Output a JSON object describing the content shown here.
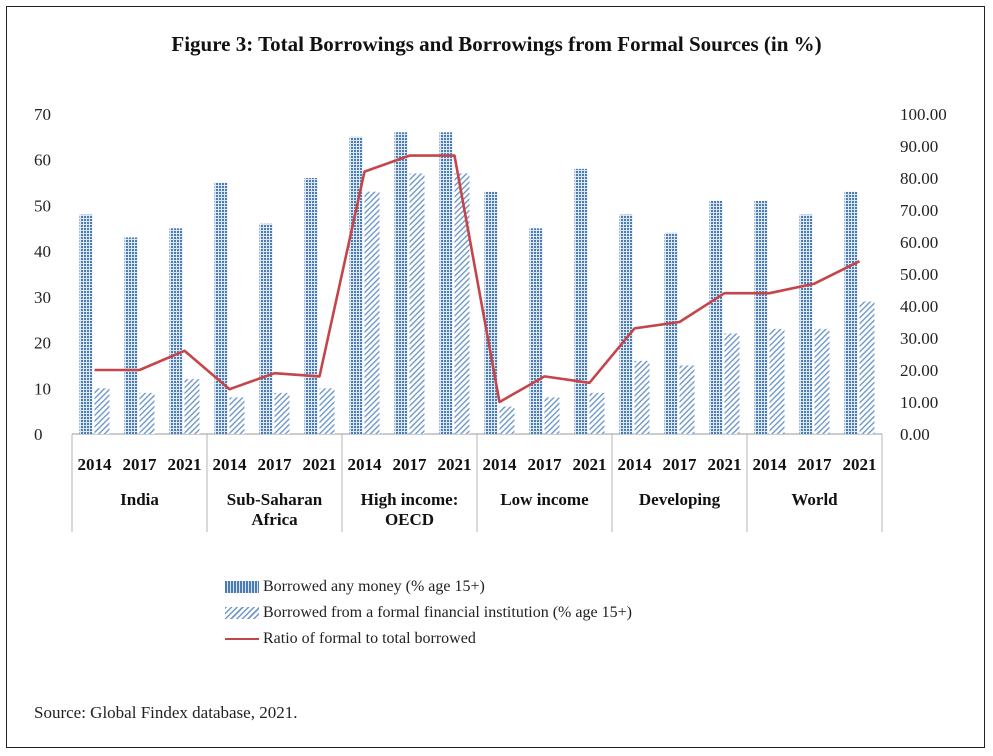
{
  "chart_data": {
    "type": "bar",
    "title": "Figure 3: Total  Borrowings and  Borrowings from Formal  Sources (in %)",
    "groups": [
      "India",
      "Sub-Saharan Africa",
      "High income: OECD",
      "Low income",
      "Developing",
      "World"
    ],
    "years": [
      "2014",
      "2017",
      "2021"
    ],
    "categories": [
      "India 2014",
      "India 2017",
      "India 2021",
      "Sub-Saharan Africa 2014",
      "Sub-Saharan Africa 2017",
      "Sub-Saharan Africa 2021",
      "High income: OECD 2014",
      "High income: OECD 2017",
      "High income: OECD 2021",
      "Low income 2014",
      "Low income 2017",
      "Low income 2021",
      "Developing 2014",
      "Developing 2017",
      "Developing 2021",
      "World 2014",
      "World 2017",
      "World 2021"
    ],
    "series": [
      {
        "name": "Borrowed any money (% age 15+)",
        "axis": "left",
        "kind": "bar",
        "values": [
          48,
          43,
          45,
          55,
          46,
          56,
          65,
          66,
          66,
          53,
          45,
          58,
          48,
          44,
          51,
          51,
          48,
          53
        ]
      },
      {
        "name": "Borrowed from a formal financial institution (% age 15+)",
        "axis": "left",
        "kind": "bar",
        "values": [
          10,
          9,
          12,
          8,
          9,
          10,
          53,
          57,
          57,
          6,
          8,
          9,
          16,
          15,
          22,
          23,
          23,
          29
        ]
      },
      {
        "name": "Ratio of formal to total borrowed",
        "axis": "right",
        "kind": "line",
        "values": [
          20,
          20,
          26,
          14,
          19,
          18,
          82,
          87,
          87,
          10,
          18,
          16,
          33,
          35,
          44,
          44,
          47,
          54
        ]
      }
    ],
    "y_left": {
      "min": 0,
      "max": 70,
      "ticks": [
        "0",
        "10",
        "20",
        "30",
        "40",
        "50",
        "60",
        "70"
      ]
    },
    "y_right": {
      "min": 0,
      "max": 100,
      "ticks": [
        "0.00",
        "10.00",
        "20.00",
        "30.00",
        "40.00",
        "50.00",
        "60.00",
        "70.00",
        "80.00",
        "90.00",
        "100.00"
      ]
    },
    "group_labels": [
      [
        "India"
      ],
      [
        "Sub-Saharan",
        "Africa"
      ],
      [
        "High income:",
        "OECD"
      ],
      [
        "Low income"
      ],
      [
        "Developing"
      ],
      [
        "World"
      ]
    ],
    "legend_position": "bottom",
    "colors": {
      "bar_any": "#4a7bb3",
      "bar_formal": "#6f98c8",
      "line": "#c4454a",
      "grid": "#d9d9d9"
    },
    "source": "Source: Global Findex database, 2021."
  }
}
